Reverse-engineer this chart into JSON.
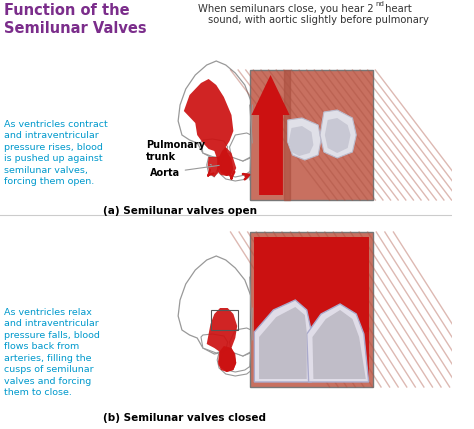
{
  "title_left": "Function of the\nSemilunar Valves",
  "title_left_color": "#7B2D8B",
  "title_right_line1": "When semilunars close, you hear 2",
  "title_right_sup": "nd",
  "title_right_line1b": " heart",
  "title_right_line2": "sound, with aortic slightly before pulmonary",
  "title_right_color": "#333333",
  "label_a": "(a) Semilunar valves open",
  "label_b": "(b) Semilunar valves closed",
  "label_aorta": "Aorta",
  "label_pulm": "Pulmonary\ntrunk",
  "text_a": "As ventricles contract\nand intraventricular\npressure rises, blood\nis pushed up against\nsemilunar valves,\nforcing them open.",
  "text_b": "As ventricles relax\nand intraventricular\npressure falls, blood\nflows back from\narteries, filling the\ncusps of semilunar\nvalves and forcing\nthem to close.",
  "cyan": "#0099CC",
  "red": "#CC1111",
  "bg": "#FFFFFF",
  "gray": "#999999",
  "muscle_bg": "#C06050",
  "muscle_stripe": "#A04040",
  "vessel_lumen": "#CC1111"
}
